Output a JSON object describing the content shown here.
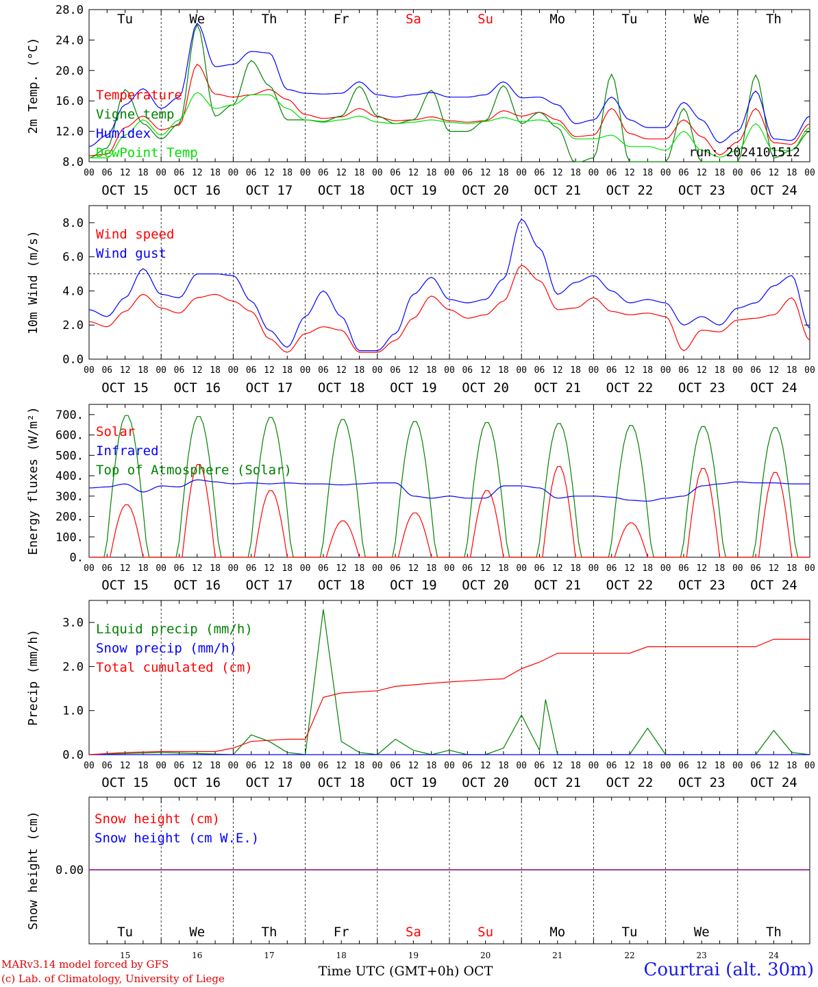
{
  "footer": {
    "credit_line1": "MARv3.14 model forced by GFS",
    "credit_line2": "(c) Lab. of Climatology, University of Liege",
    "xlabel": "Time UTC (GMT+0h) OCT",
    "location": "Courtrai (alt. 30m)"
  },
  "colors": {
    "red": "#ff0000",
    "green": "#008000",
    "blue": "#0000ff",
    "lightgreen": "#00e000",
    "purple": "#800080",
    "weekend": "#ff0000"
  },
  "days": [
    "15",
    "16",
    "17",
    "18",
    "19",
    "20",
    "21",
    "22",
    "23",
    "24"
  ],
  "day_abbr": [
    "Tu",
    "We",
    "Th",
    "Fr",
    "Sa",
    "Su",
    "Mo",
    "Tu",
    "We",
    "Th"
  ],
  "weekend": [
    false,
    false,
    false,
    false,
    true,
    true,
    false,
    false,
    false,
    false
  ],
  "date_labels": [
    "OCT 15",
    "OCT 16",
    "OCT 17",
    "OCT 18",
    "OCT 19",
    "OCT 20",
    "OCT 21",
    "OCT 22",
    "OCT 23",
    "OCT 24"
  ],
  "hour_labels": [
    "00",
    "06",
    "12",
    "18"
  ],
  "final_hour_label": "00",
  "chart_data": [
    {
      "type": "line",
      "ylabel": "2m Temp. (°C)",
      "ylim": [
        8,
        28
      ],
      "yticks": [
        "8.0",
        "12.0",
        "16.0",
        "20.0",
        "24.0",
        "28.0"
      ],
      "ytick_values": [
        8,
        12,
        16,
        20,
        24,
        28
      ],
      "annotation": "run: 2024101512",
      "x_hours": [
        0,
        6,
        12,
        18,
        24,
        30,
        36,
        42,
        48,
        54,
        60,
        66,
        72,
        78,
        84,
        90,
        96,
        102,
        108,
        114,
        120,
        126,
        132,
        138,
        144,
        150,
        156,
        162,
        168,
        174,
        180,
        186,
        192,
        198,
        204,
        210,
        216,
        222,
        228,
        234,
        240
      ],
      "series": [
        {
          "name": "Temperature",
          "color": "#ff0000",
          "values": [
            8.8,
            9.0,
            12.5,
            14.0,
            12.2,
            12.8,
            20.8,
            16.9,
            16.5,
            16.8,
            17.5,
            16.2,
            14.2,
            13.7,
            13.9,
            15.0,
            13.9,
            13.4,
            13.5,
            13.9,
            13.4,
            13.2,
            13.4,
            14.7,
            14.0,
            14.5,
            13.5,
            11.3,
            11.5,
            15.0,
            11.7,
            11.0,
            11.0,
            13.5,
            11.3,
            8.9,
            10.6,
            15.0,
            10.5,
            10.3,
            13.0
          ]
        },
        {
          "name": "Vigne temp",
          "color": "#008000",
          "values": [
            8.5,
            9.8,
            17.5,
            13.0,
            11.0,
            13.0,
            26.0,
            14.0,
            15.5,
            21.3,
            18.0,
            13.5,
            13.5,
            13.3,
            14.0,
            17.9,
            14.0,
            13.0,
            13.5,
            17.4,
            12.0,
            12.0,
            13.4,
            18.0,
            13.0,
            14.5,
            12.5,
            7.8,
            8.5,
            19.5,
            8.0,
            8.0,
            8.0,
            15.0,
            8.0,
            8.0,
            8.0,
            19.4,
            8.5,
            9.5,
            12.0
          ]
        },
        {
          "name": "Humidex",
          "color": "#0000ff",
          "values": [
            10.0,
            11.5,
            15.5,
            17.6,
            15.0,
            16.5,
            26.2,
            20.5,
            20.8,
            22.5,
            22.3,
            17.5,
            17.0,
            16.9,
            17.0,
            18.5,
            16.8,
            16.5,
            16.8,
            17.1,
            16.5,
            16.5,
            16.8,
            18.5,
            16.4,
            16.5,
            15.5,
            13.0,
            13.5,
            16.5,
            13.5,
            12.5,
            12.5,
            15.8,
            13.5,
            10.5,
            12.0,
            17.3,
            11.0,
            10.8,
            14.0
          ]
        },
        {
          "name": "DewPoint Temp",
          "color": "#00e000",
          "values": [
            8.5,
            8.5,
            11.5,
            13.5,
            11.5,
            13.5,
            17.1,
            15.0,
            15.5,
            16.8,
            16.8,
            15.0,
            13.5,
            13.2,
            13.5,
            14.0,
            13.2,
            13.0,
            13.2,
            13.5,
            13.2,
            13.0,
            13.3,
            13.8,
            13.3,
            13.5,
            13.0,
            11.0,
            11.0,
            11.5,
            10.0,
            10.0,
            9.5,
            12.0,
            9.5,
            8.6,
            9.5,
            13.0,
            9.5,
            9.5,
            12.5
          ]
        }
      ]
    },
    {
      "type": "line",
      "ylabel": "10m Wind (m/s)",
      "ylim": [
        0,
        9
      ],
      "yticks": [
        "0.0",
        "2.0",
        "4.0",
        "6.0",
        "8.0"
      ],
      "ytick_values": [
        0,
        2,
        4,
        6,
        8
      ],
      "reference_line": 5,
      "x_hours": [
        0,
        6,
        12,
        18,
        24,
        30,
        36,
        42,
        48,
        54,
        60,
        66,
        72,
        78,
        84,
        90,
        96,
        102,
        108,
        114,
        120,
        126,
        132,
        138,
        144,
        150,
        156,
        162,
        168,
        174,
        180,
        186,
        192,
        198,
        204,
        210,
        216,
        222,
        228,
        234,
        240
      ],
      "series": [
        {
          "name": "Wind speed",
          "color": "#ff0000",
          "values": [
            2.2,
            1.9,
            2.8,
            3.8,
            3.0,
            2.7,
            3.6,
            3.8,
            3.4,
            2.8,
            1.2,
            0.4,
            1.5,
            1.9,
            1.7,
            0.4,
            0.4,
            1.1,
            2.4,
            3.7,
            2.9,
            2.4,
            2.6,
            3.4,
            5.5,
            4.6,
            2.9,
            3.0,
            3.6,
            2.8,
            2.6,
            2.7,
            2.5,
            0.5,
            1.7,
            1.6,
            2.3,
            2.4,
            2.6,
            3.6,
            1.1
          ]
        },
        {
          "name": "Wind gust",
          "color": "#0000ff",
          "values": [
            2.9,
            2.5,
            3.6,
            5.3,
            3.8,
            3.6,
            5.0,
            5.0,
            4.9,
            3.4,
            1.7,
            0.7,
            2.5,
            4.0,
            2.5,
            0.5,
            0.5,
            1.5,
            3.8,
            4.8,
            3.5,
            3.3,
            3.5,
            4.7,
            8.2,
            6.5,
            3.8,
            4.5,
            4.9,
            4.0,
            3.3,
            3.5,
            3.3,
            2.0,
            2.5,
            2.0,
            3.0,
            3.3,
            4.3,
            4.9,
            1.8
          ]
        }
      ]
    },
    {
      "type": "line",
      "ylabel": "Energy fluxes (W/m²)",
      "ylim": [
        0,
        750
      ],
      "yticks": [
        "0.",
        "100.",
        "200.",
        "300.",
        "400.",
        "500.",
        "600.",
        "700."
      ],
      "ytick_values": [
        0,
        100,
        200,
        300,
        400,
        500,
        600,
        700
      ],
      "solar_peaks": [
        260,
        460,
        330,
        180,
        220,
        330,
        450,
        170,
        440,
        420
      ],
      "toa_peaks": [
        700,
        695,
        690,
        680,
        670,
        665,
        660,
        650,
        645,
        640
      ],
      "infrared_values": [
        340,
        345,
        360,
        320,
        350,
        345,
        380,
        370,
        360,
        365,
        360,
        365,
        360,
        360,
        355,
        360,
        365,
        365,
        300,
        290,
        300,
        290,
        290,
        350,
        350,
        340,
        290,
        300,
        300,
        295,
        280,
        275,
        290,
        300,
        350,
        360,
        370,
        365,
        365,
        360,
        360
      ],
      "series": [
        {
          "name": "Solar",
          "color": "#ff0000"
        },
        {
          "name": "Infrared",
          "color": "#0000ff"
        },
        {
          "name": "Top of Atmosphere (Solar)",
          "color": "#008000"
        }
      ]
    },
    {
      "type": "line",
      "ylabel": "Precip (mm/h)",
      "ylim": [
        0,
        3.5
      ],
      "yticks": [
        "0.0",
        "1.0",
        "2.0",
        "3.0"
      ],
      "ytick_values": [
        0,
        1,
        2,
        3
      ],
      "liquid_points": [
        [
          0,
          0
        ],
        [
          24,
          0.05
        ],
        [
          48,
          0.0
        ],
        [
          54,
          0.45
        ],
        [
          60,
          0.3
        ],
        [
          66,
          0.05
        ],
        [
          72,
          0.0
        ],
        [
          78,
          3.3
        ],
        [
          84,
          0.3
        ],
        [
          90,
          0.05
        ],
        [
          96,
          0.0
        ],
        [
          102,
          0.35
        ],
        [
          108,
          0.1
        ],
        [
          114,
          0.0
        ],
        [
          120,
          0.1
        ],
        [
          126,
          0.0
        ],
        [
          132,
          0.0
        ],
        [
          138,
          0.15
        ],
        [
          144,
          0.9
        ],
        [
          150,
          0.1
        ],
        [
          152,
          1.25
        ],
        [
          156,
          0.0
        ],
        [
          180,
          0.0
        ],
        [
          186,
          0.6
        ],
        [
          192,
          0.0
        ],
        [
          222,
          0.0
        ],
        [
          228,
          0.55
        ],
        [
          234,
          0.05
        ],
        [
          240,
          0.0
        ]
      ],
      "cumulated_points": [
        [
          0,
          0
        ],
        [
          12,
          0.05
        ],
        [
          24,
          0.07
        ],
        [
          42,
          0.07
        ],
        [
          48,
          0.15
        ],
        [
          54,
          0.3
        ],
        [
          66,
          0.35
        ],
        [
          72,
          0.35
        ],
        [
          78,
          1.3
        ],
        [
          84,
          1.4
        ],
        [
          96,
          1.45
        ],
        [
          102,
          1.55
        ],
        [
          114,
          1.62
        ],
        [
          120,
          1.65
        ],
        [
          132,
          1.7
        ],
        [
          138,
          1.72
        ],
        [
          144,
          1.95
        ],
        [
          150,
          2.1
        ],
        [
          156,
          2.3
        ],
        [
          180,
          2.3
        ],
        [
          186,
          2.45
        ],
        [
          222,
          2.45
        ],
        [
          228,
          2.62
        ],
        [
          240,
          2.62
        ]
      ],
      "series": [
        {
          "name": "Liquid precip (mm/h)",
          "color": "#008000"
        },
        {
          "name": "Snow precip (mm/h)",
          "color": "#0000ff"
        },
        {
          "name": "Total cumulated (cm)",
          "color": "#ff0000"
        }
      ]
    },
    {
      "type": "line",
      "ylabel": "Snow height (cm)",
      "ytick": "0.00",
      "series": [
        {
          "name": "Snow height (cm)",
          "color": "#ff0000"
        },
        {
          "name": "Snow height (cm W.E.)",
          "color": "#0000ff"
        }
      ]
    }
  ]
}
